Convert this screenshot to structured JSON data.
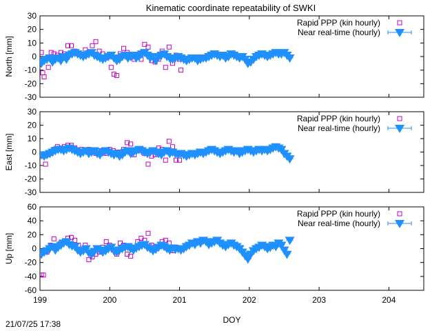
{
  "title": "Kinematic coordinate repeatability of SWKI",
  "timestamp": "21/07/25 17:38",
  "chart_data": [
    {
      "type": "scatter",
      "ylabel": "North [mm]",
      "xlabel": "DOY",
      "xlim": [
        199,
        204.5
      ],
      "ylim": [
        -30,
        30
      ],
      "x_ticks": [
        199,
        200,
        201,
        202,
        203,
        204
      ],
      "y_ticks": [
        -30,
        -20,
        -10,
        0,
        10,
        20,
        30
      ],
      "legend_position": "top-right",
      "series": [
        {
          "name": "Rapid PPP (kin hourly)",
          "marker": "open-square",
          "color": "#c000c0",
          "x": [
            199.02,
            199.04,
            199.06,
            199.08,
            199.12,
            199.16,
            199.2,
            199.25,
            199.3,
            199.35,
            199.4,
            199.45,
            199.5,
            199.55,
            199.6,
            199.65,
            199.7,
            199.75,
            199.8,
            199.85,
            199.9,
            199.95,
            199.98,
            200.02,
            200.06,
            200.1,
            200.15,
            200.2,
            200.25,
            200.3,
            200.35,
            200.4,
            200.45,
            200.5,
            200.55,
            200.6,
            200.65,
            200.7,
            200.75,
            200.8,
            200.85,
            200.9,
            200.95,
            201.0,
            201.02
          ],
          "y": [
            3,
            -12,
            -15,
            -2,
            -8,
            3,
            2,
            1,
            3,
            2,
            8,
            8,
            4,
            2,
            1,
            5,
            3,
            8,
            11,
            4,
            2,
            -1,
            0,
            -8,
            -13,
            -14,
            2,
            6,
            3,
            0,
            -2,
            1,
            -2,
            9,
            7,
            -3,
            -4,
            -2,
            4,
            -8,
            7,
            -5,
            1,
            -2,
            -10
          ]
        },
        {
          "name": "Near real-time (hourly)",
          "marker": "filled-triangle-down",
          "color": "#1e90ff",
          "x": [
            199.02,
            199.06,
            199.1,
            199.14,
            199.18,
            199.22,
            199.26,
            199.3,
            199.34,
            199.38,
            199.42,
            199.46,
            199.5,
            199.54,
            199.58,
            199.62,
            199.66,
            199.7,
            199.74,
            199.78,
            199.82,
            199.86,
            199.9,
            199.94,
            199.98,
            200.02,
            200.06,
            200.1,
            200.14,
            200.18,
            200.22,
            200.26,
            200.3,
            200.34,
            200.38,
            200.42,
            200.46,
            200.5,
            200.54,
            200.58,
            200.62,
            200.66,
            200.7,
            200.74,
            200.78,
            200.82,
            200.86,
            200.9,
            200.94,
            200.98,
            201.02,
            201.06,
            201.1,
            201.14,
            201.18,
            201.22,
            201.26,
            201.3,
            201.34,
            201.38,
            201.42,
            201.46,
            201.5,
            201.54,
            201.58,
            201.62,
            201.66,
            201.7,
            201.74,
            201.78,
            201.82,
            201.86,
            201.9,
            201.94,
            201.98,
            202.02,
            202.06,
            202.1,
            202.14,
            202.18,
            202.22,
            202.26,
            202.3,
            202.34,
            202.38,
            202.42,
            202.46,
            202.5,
            202.54,
            202.58
          ],
          "y": [
            -5,
            -3,
            -2,
            -1,
            -4,
            -2,
            -1,
            -3,
            0,
            -2,
            1,
            2,
            3,
            2,
            1,
            0,
            1,
            2,
            3,
            1,
            0,
            -1,
            -2,
            -1,
            0,
            1,
            -1,
            -3,
            -2,
            0,
            1,
            -1,
            0,
            1,
            -1,
            0,
            2,
            3,
            1,
            -1,
            0,
            -3,
            0,
            1,
            2,
            0,
            -1,
            -2,
            -1,
            0,
            -1,
            -2,
            -3,
            -2,
            -1,
            -1,
            -3,
            -2,
            -1,
            -1,
            0,
            1,
            2,
            1,
            0,
            1,
            -1,
            0,
            2,
            1,
            0,
            -1,
            0,
            -2,
            -5,
            -4,
            -2,
            0,
            1,
            2,
            1,
            0,
            1,
            2,
            3,
            2,
            2,
            3,
            1,
            -1
          ]
        }
      ]
    },
    {
      "type": "scatter",
      "ylabel": "East [mm]",
      "xlabel": "DOY",
      "xlim": [
        199,
        204.5
      ],
      "ylim": [
        -30,
        30
      ],
      "x_ticks": [
        199,
        200,
        201,
        202,
        203,
        204
      ],
      "y_ticks": [
        -30,
        -20,
        -10,
        0,
        10,
        20,
        30
      ],
      "legend_position": "top-right",
      "series": [
        {
          "name": "Rapid PPP (kin hourly)",
          "marker": "open-square",
          "color": "#c000c0",
          "x": [
            199.02,
            199.05,
            199.08,
            199.12,
            199.16,
            199.2,
            199.25,
            199.3,
            199.35,
            199.4,
            199.45,
            199.5,
            199.55,
            199.6,
            199.65,
            199.7,
            199.75,
            199.8,
            199.85,
            199.9,
            199.95,
            200.0,
            200.05,
            200.1,
            200.15,
            200.2,
            200.25,
            200.3,
            200.35,
            200.4,
            200.45,
            200.5,
            200.55,
            200.6,
            200.65,
            200.7,
            200.75,
            200.8,
            200.85,
            200.9,
            200.95,
            201.0
          ],
          "y": [
            -2,
            -3,
            -9,
            -2,
            -1,
            2,
            4,
            3,
            4,
            5,
            5,
            3,
            1,
            2,
            1,
            2,
            0,
            -1,
            1,
            0,
            -1,
            2,
            1,
            0,
            0,
            2,
            7,
            6,
            -2,
            1,
            2,
            -1,
            -9,
            -3,
            -2,
            3,
            2,
            -6,
            8,
            4,
            -6,
            -6
          ]
        },
        {
          "name": "Near real-time (hourly)",
          "marker": "filled-triangle-down",
          "color": "#1e90ff",
          "x": [
            199.02,
            199.06,
            199.1,
            199.14,
            199.18,
            199.22,
            199.26,
            199.3,
            199.34,
            199.38,
            199.42,
            199.46,
            199.5,
            199.54,
            199.58,
            199.62,
            199.66,
            199.7,
            199.74,
            199.78,
            199.82,
            199.86,
            199.9,
            199.94,
            199.98,
            200.02,
            200.06,
            200.1,
            200.14,
            200.18,
            200.22,
            200.26,
            200.3,
            200.34,
            200.38,
            200.42,
            200.46,
            200.5,
            200.54,
            200.58,
            200.62,
            200.66,
            200.7,
            200.74,
            200.78,
            200.82,
            200.86,
            200.9,
            200.94,
            200.98,
            201.02,
            201.06,
            201.1,
            201.14,
            201.18,
            201.22,
            201.26,
            201.3,
            201.34,
            201.38,
            201.42,
            201.46,
            201.5,
            201.54,
            201.58,
            201.62,
            201.66,
            201.7,
            201.74,
            201.78,
            201.82,
            201.86,
            201.9,
            201.94,
            201.98,
            202.02,
            202.06,
            202.1,
            202.14,
            202.18,
            202.22,
            202.26,
            202.3,
            202.34,
            202.38,
            202.42,
            202.46,
            202.5,
            202.54,
            202.58
          ],
          "y": [
            -2,
            -3,
            -2,
            -1,
            0,
            1,
            2,
            2,
            1,
            2,
            3,
            2,
            1,
            0,
            -1,
            0,
            1,
            -1,
            0,
            1,
            -1,
            -2,
            0,
            1,
            0,
            -1,
            -2,
            -1,
            -3,
            -2,
            0,
            1,
            -1,
            0,
            1,
            2,
            1,
            0,
            -1,
            0,
            1,
            0,
            -1,
            -2,
            0,
            1,
            -1,
            0,
            -1,
            -2,
            -1,
            -2,
            -3,
            -2,
            -1,
            -2,
            -1,
            0,
            -1,
            0,
            1,
            2,
            1,
            0,
            -1,
            0,
            1,
            2,
            1,
            0,
            1,
            -1,
            0,
            1,
            2,
            1,
            0,
            1,
            2,
            1,
            2,
            1,
            2,
            3,
            4,
            3,
            2,
            -1,
            -3,
            -5
          ]
        }
      ]
    },
    {
      "type": "scatter",
      "ylabel": "Up [mm]",
      "xlabel": "DOY",
      "xlim": [
        199,
        204.5
      ],
      "ylim": [
        -60,
        60
      ],
      "x_ticks": [
        199,
        200,
        201,
        202,
        203,
        204
      ],
      "x_tick_labels": [
        "199",
        "200",
        "201",
        "202",
        "203",
        "204"
      ],
      "y_ticks": [
        -60,
        -40,
        -20,
        0,
        20,
        40,
        60
      ],
      "legend_position": "top-right",
      "series": [
        {
          "name": "Rapid PPP (kin hourly)",
          "marker": "open-square",
          "color": "#c000c0",
          "x": [
            199.02,
            199.05,
            199.1,
            199.15,
            199.2,
            199.25,
            199.3,
            199.35,
            199.4,
            199.45,
            199.5,
            199.55,
            199.6,
            199.65,
            199.7,
            199.75,
            199.8,
            199.85,
            199.9,
            199.95,
            200.0,
            200.05,
            200.1,
            200.15,
            200.2,
            200.25,
            200.3,
            200.35,
            200.4,
            200.45,
            200.5,
            200.55,
            200.6,
            200.65,
            200.7,
            200.75,
            200.8,
            200.85,
            200.9,
            200.95,
            201.0
          ],
          "y": [
            -38,
            -38,
            -5,
            5,
            14,
            3,
            8,
            10,
            15,
            16,
            12,
            5,
            -3,
            5,
            -16,
            -12,
            -8,
            -5,
            2,
            10,
            5,
            -2,
            -8,
            8,
            5,
            -8,
            -11,
            2,
            10,
            15,
            12,
            22,
            5,
            2,
            3,
            10,
            12,
            8,
            -3,
            2,
            0
          ]
        },
        {
          "name": "Near real-time (hourly)",
          "marker": "filled-triangle-down",
          "color": "#1e90ff",
          "x": [
            199.02,
            199.06,
            199.1,
            199.14,
            199.18,
            199.22,
            199.26,
            199.3,
            199.34,
            199.38,
            199.42,
            199.46,
            199.5,
            199.54,
            199.58,
            199.62,
            199.66,
            199.7,
            199.74,
            199.78,
            199.82,
            199.86,
            199.9,
            199.94,
            199.98,
            200.02,
            200.06,
            200.1,
            200.14,
            200.18,
            200.22,
            200.26,
            200.3,
            200.34,
            200.38,
            200.42,
            200.46,
            200.5,
            200.54,
            200.58,
            200.62,
            200.66,
            200.7,
            200.74,
            200.78,
            200.82,
            200.86,
            200.9,
            200.94,
            200.98,
            201.02,
            201.06,
            201.1,
            201.14,
            201.18,
            201.22,
            201.26,
            201.3,
            201.34,
            201.38,
            201.42,
            201.46,
            201.5,
            201.54,
            201.58,
            201.62,
            201.66,
            201.7,
            201.74,
            201.78,
            201.82,
            201.86,
            201.9,
            201.94,
            201.98,
            202.02,
            202.06,
            202.1,
            202.14,
            202.18,
            202.22,
            202.26,
            202.3,
            202.34,
            202.38,
            202.42,
            202.46,
            202.5,
            202.54,
            202.58
          ],
          "y": [
            -8,
            -5,
            -3,
            0,
            3,
            -2,
            2,
            5,
            8,
            10,
            6,
            4,
            3,
            -2,
            -5,
            -3,
            0,
            -6,
            -8,
            -4,
            0,
            -2,
            -5,
            -3,
            0,
            2,
            -3,
            -5,
            -2,
            0,
            2,
            3,
            0,
            -2,
            1,
            3,
            5,
            6,
            2,
            0,
            -3,
            -1,
            2,
            5,
            3,
            0,
            -2,
            1,
            -1,
            0,
            -2,
            0,
            3,
            5,
            8,
            6,
            10,
            8,
            12,
            10,
            6,
            8,
            10,
            12,
            8,
            5,
            3,
            6,
            8,
            5,
            3,
            0,
            -5,
            -10,
            -15,
            -8,
            -3,
            0,
            2,
            5,
            3,
            0,
            2,
            5,
            3,
            8,
            5,
            -2,
            -8,
            12
          ]
        }
      ]
    }
  ]
}
